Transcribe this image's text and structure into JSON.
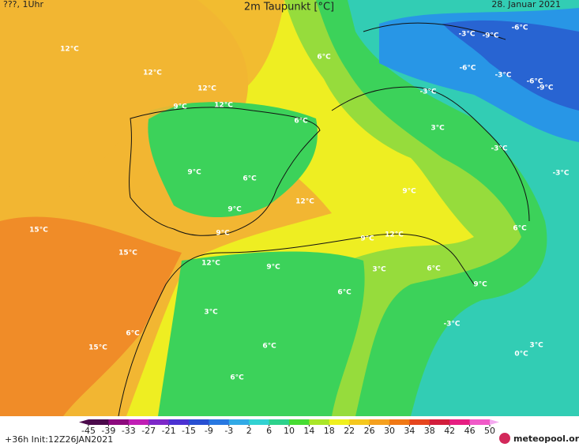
{
  "header": {
    "left": "???, 1Uhr",
    "title": "2m Taupunkt [°C]",
    "date": "28. Januar 2021"
  },
  "map_labels": [
    "12°C",
    "12°C",
    "12°C",
    "9°C",
    "12°C",
    "6°C",
    "6°C",
    "9°C",
    "6°C",
    "9°C",
    "12°C",
    "9°C",
    "15°C",
    "15°C",
    "12°C",
    "9°C",
    "9°C",
    "12°C",
    "3°C",
    "6°C",
    "6°C",
    "9°C",
    "3°C",
    "6°C",
    "15°C",
    "6°C",
    "6°C",
    "-3°C",
    "3°C",
    "0°C",
    "6°C",
    "-3°C",
    "-3°C",
    "3°C",
    "9°C",
    "-3°C",
    "-3°C",
    "-9°C",
    "-6°C",
    "-6°C",
    "-3°C",
    "-6°C",
    "-9°C"
  ],
  "colorbar": {
    "ticks": [
      -45,
      -39,
      -33,
      -27,
      -21,
      -15,
      -9,
      -3,
      2,
      6,
      10,
      14,
      18,
      22,
      26,
      30,
      34,
      38,
      42,
      46,
      50
    ],
    "colors": [
      "#4b0a4b",
      "#8c0a7d",
      "#c01eb4",
      "#7d28c8",
      "#4b32d2",
      "#2850d2",
      "#2878e1",
      "#32aae6",
      "#32d2d2",
      "#2dd28c",
      "#46dc32",
      "#aae628",
      "#f0f01e",
      "#f5c81e",
      "#f5a01e",
      "#f07814",
      "#e6461e",
      "#d21e3c",
      "#e61e82",
      "#f05ac8",
      "#f5aaf0"
    ]
  },
  "footer": {
    "init": "+36h Init:12Z26JAN2021",
    "logo": "meteopool.org"
  }
}
